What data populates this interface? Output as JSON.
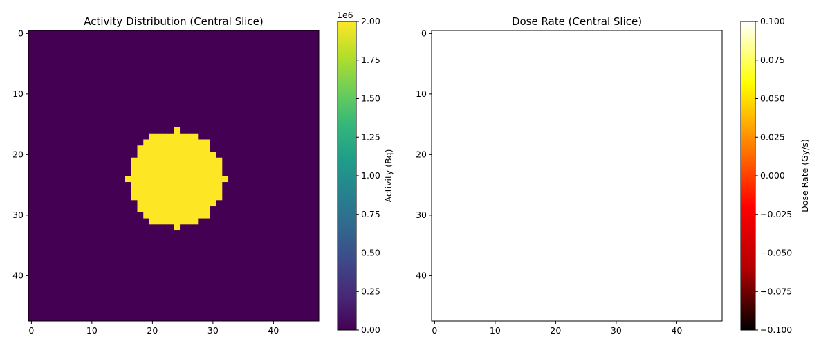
{
  "chart_data": [
    {
      "type": "heatmap",
      "title": "Activity Distribution (Central Slice)",
      "colormap": "viridis",
      "grid": false,
      "image": {
        "rows": 48,
        "cols": 48,
        "background_value": 0,
        "filled_value": 2000000
      },
      "filled_row_spans": [
        {
          "row": 16,
          "col_start": 24,
          "col_end": 24
        },
        {
          "row": 17,
          "col_start": 20,
          "col_end": 27
        },
        {
          "row": 18,
          "col_start": 19,
          "col_end": 29
        },
        {
          "row": 19,
          "col_start": 18,
          "col_end": 29
        },
        {
          "row": 20,
          "col_start": 18,
          "col_end": 30
        },
        {
          "row": 21,
          "col_start": 17,
          "col_end": 31
        },
        {
          "row": 22,
          "col_start": 17,
          "col_end": 31
        },
        {
          "row": 23,
          "col_start": 17,
          "col_end": 31
        },
        {
          "row": 24,
          "col_start": 16,
          "col_end": 32
        },
        {
          "row": 25,
          "col_start": 17,
          "col_end": 31
        },
        {
          "row": 26,
          "col_start": 17,
          "col_end": 31
        },
        {
          "row": 27,
          "col_start": 17,
          "col_end": 31
        },
        {
          "row": 28,
          "col_start": 18,
          "col_end": 30
        },
        {
          "row": 29,
          "col_start": 18,
          "col_end": 29
        },
        {
          "row": 30,
          "col_start": 19,
          "col_end": 29
        },
        {
          "row": 31,
          "col_start": 20,
          "col_end": 27
        },
        {
          "row": 32,
          "col_start": 24,
          "col_end": 24
        }
      ],
      "x_ticks": [
        "0",
        "10",
        "20",
        "30",
        "40"
      ],
      "y_ticks": [
        "0",
        "10",
        "20",
        "30",
        "40"
      ],
      "colorbar": {
        "label": "Activity (Bq)",
        "range": [
          0,
          2.0
        ],
        "offset_text": "1e6",
        "ticks": [
          "0.00",
          "0.25",
          "0.50",
          "0.75",
          "1.00",
          "1.25",
          "1.50",
          "1.75",
          "2.00"
        ],
        "colors": [
          "#440154",
          "#482878",
          "#3e4989",
          "#31688e",
          "#26828e",
          "#1f9e89",
          "#35b779",
          "#6ece58",
          "#b5de2b",
          "#fde725"
        ]
      }
    },
    {
      "type": "heatmap",
      "title": "Dose Rate (Central Slice)",
      "colormap": "hot",
      "grid": false,
      "image": {
        "rows": 48,
        "cols": 48,
        "uniform_value": 0,
        "rendered_color": "#ffffff"
      },
      "x_ticks": [
        "0",
        "10",
        "20",
        "30",
        "40"
      ],
      "y_ticks": [
        "0",
        "10",
        "20",
        "30",
        "40"
      ],
      "colorbar": {
        "label": "Dose Rate (Gy/s)",
        "range": [
          -0.1,
          0.1
        ],
        "ticks": [
          "−0.100",
          "−0.075",
          "−0.050",
          "−0.025",
          "0.000",
          "0.025",
          "0.050",
          "0.075",
          "0.100"
        ],
        "colors": [
          "#000000",
          "#b30000",
          "#ff0000",
          "#ff8000",
          "#ffff00",
          "#ffffff"
        ]
      }
    }
  ]
}
